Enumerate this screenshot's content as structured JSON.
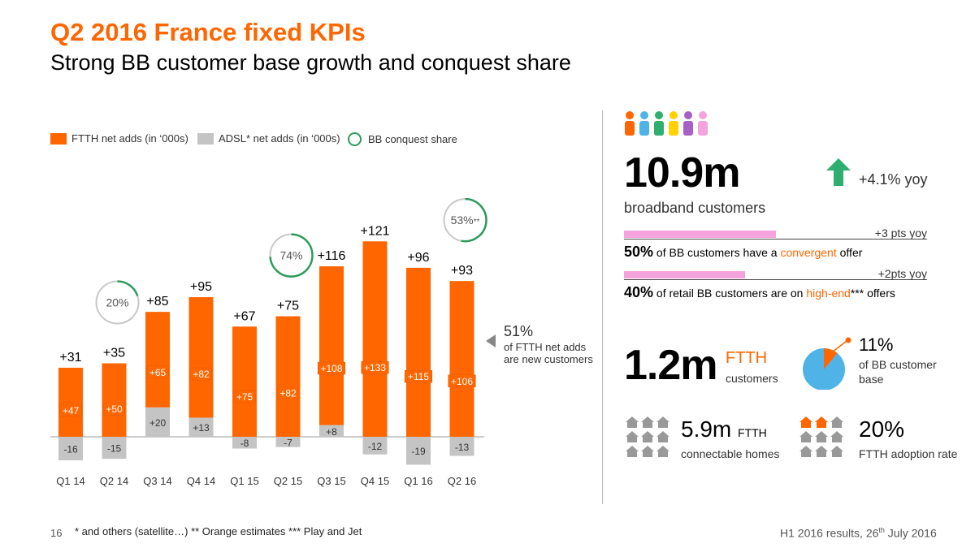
{
  "header": {
    "title": "Q2 2016 France fixed KPIs",
    "subtitle": "Strong BB customer base growth and conquest share"
  },
  "legend": {
    "ftth": "FTTH net adds (in ‘000s)",
    "adsl": "ADSL* net adds (in ‘000s)",
    "conquest": "BB conquest share"
  },
  "colors": {
    "orange": "#ff6600",
    "grey": "#c4c4c4",
    "green": "#2e9a5c",
    "pink": "#f5a3dc",
    "blue": "#4fb3e8"
  },
  "chart_data": {
    "type": "bar",
    "stacked": true,
    "categories": [
      "Q1 14",
      "Q2 14",
      "Q3 14",
      "Q4 14",
      "Q1 15",
      "Q2 15",
      "Q3 15",
      "Q4 15",
      "Q1 16",
      "Q2 16"
    ],
    "series": [
      {
        "name": "FTTH net adds (in ‘000s)",
        "values": [
          47,
          50,
          65,
          82,
          75,
          82,
          108,
          133,
          115,
          106
        ],
        "labels": [
          "+47",
          "+50",
          "+65",
          "+82",
          "+75",
          "+82",
          "+108",
          "+133",
          "+115",
          "+106"
        ]
      },
      {
        "name": "ADSL* net adds (in ‘000s)",
        "values": [
          -16,
          -15,
          20,
          13,
          -8,
          -7,
          8,
          -12,
          -19,
          -13
        ],
        "labels": [
          "-16",
          "-15",
          "+20",
          "+13",
          "-8",
          "-7",
          "+8",
          "-12",
          "-19",
          "-13"
        ]
      }
    ],
    "totals": [
      "+31",
      "+35",
      "+85",
      "+95",
      "+67",
      "+75",
      "+116",
      "+121",
      "+96",
      "+93"
    ],
    "conquest_share": [
      {
        "category": "Q2 14",
        "value": 20,
        "label": "20%"
      },
      {
        "category": "Q2 15",
        "value": 74,
        "label": "74%"
      },
      {
        "category": "Q2 16",
        "value": 53,
        "label": "53%",
        "suffix": "**"
      }
    ],
    "ylim": [
      -20,
      140
    ]
  },
  "callout": {
    "pct": "51%",
    "desc_line1": "of FTTH net adds",
    "desc_line2": "are new customers"
  },
  "kpis": {
    "broadband": {
      "value": "10.9m",
      "label": "broadband customers",
      "yoy": "+4.1% yoy"
    },
    "convergent": {
      "pts": "+3 pts yoy",
      "pct": "50%",
      "text_pre": "of BB customers have a",
      "highlight": "convergent",
      "text_post": "offer",
      "fraction": 0.5
    },
    "highend": {
      "pts": "+2pts yoy",
      "pct": "40%",
      "text_pre": "of retail BB customers are on",
      "highlight": "high-end",
      "stars": "***",
      "text_post": "offers",
      "fraction": 0.4
    },
    "ftth": {
      "value": "1.2m",
      "label": "FTTH",
      "sublabel": "customers"
    },
    "ftth_share": {
      "value": "11%",
      "line1": "of BB customer",
      "line2": "base",
      "fraction": 0.11
    },
    "connectable": {
      "value": "5.9m",
      "unit": "FTTH",
      "label": "connectable homes"
    },
    "adoption": {
      "value": "20%",
      "label": "FTTH adoption rate"
    }
  },
  "footer": {
    "page": "16",
    "notes": "* and others (satellite…) ** Orange estimates *** Play and Jet",
    "event_pre": "H1 2016 results, 26",
    "event_sup": "th",
    "event_post": " July 2016"
  }
}
